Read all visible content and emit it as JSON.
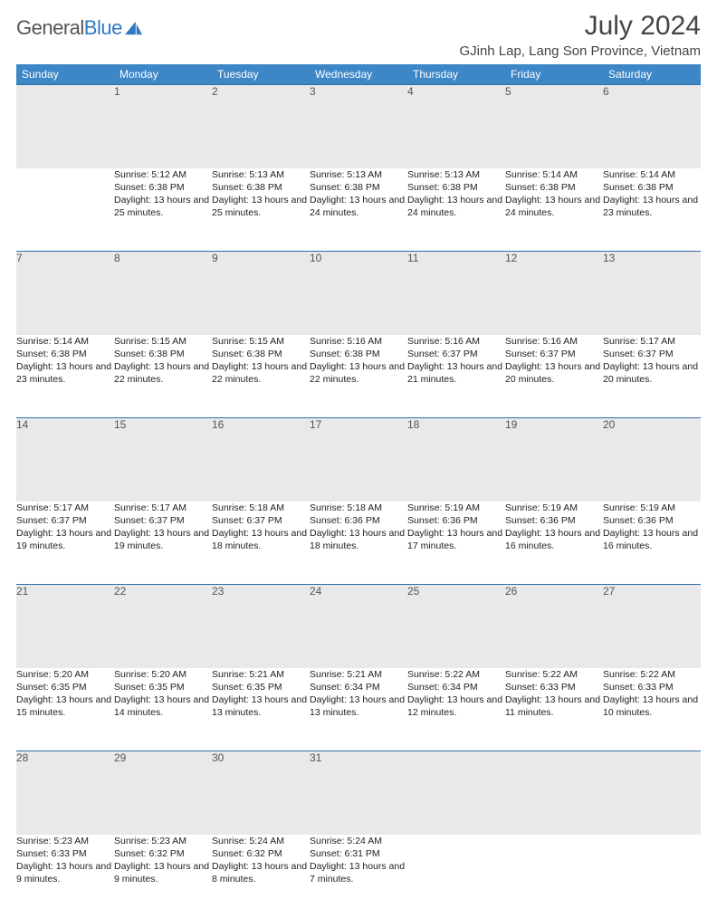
{
  "logo": {
    "word1": "General",
    "word2": "Blue"
  },
  "header": {
    "month_title": "July 2024",
    "location": "GJinh Lap, Lang Son Province, Vietnam"
  },
  "colors": {
    "header_bg": "#3d87c7",
    "header_text": "#ffffff",
    "daynum_bg": "#e9e9e9",
    "daynum_border": "#2f6fa8",
    "body_bg": "#ffffff",
    "text": "#222222",
    "logo_gray": "#555555",
    "logo_blue": "#2f7ac0"
  },
  "weekdays": [
    "Sunday",
    "Monday",
    "Tuesday",
    "Wednesday",
    "Thursday",
    "Friday",
    "Saturday"
  ],
  "weeks": [
    {
      "nums": [
        "",
        "1",
        "2",
        "3",
        "4",
        "5",
        "6"
      ],
      "details": [
        "",
        "Sunrise: 5:12 AM\nSunset: 6:38 PM\nDaylight: 13 hours and 25 minutes.",
        "Sunrise: 5:13 AM\nSunset: 6:38 PM\nDaylight: 13 hours and 25 minutes.",
        "Sunrise: 5:13 AM\nSunset: 6:38 PM\nDaylight: 13 hours and 24 minutes.",
        "Sunrise: 5:13 AM\nSunset: 6:38 PM\nDaylight: 13 hours and 24 minutes.",
        "Sunrise: 5:14 AM\nSunset: 6:38 PM\nDaylight: 13 hours and 24 minutes.",
        "Sunrise: 5:14 AM\nSunset: 6:38 PM\nDaylight: 13 hours and 23 minutes."
      ]
    },
    {
      "nums": [
        "7",
        "8",
        "9",
        "10",
        "11",
        "12",
        "13"
      ],
      "details": [
        "Sunrise: 5:14 AM\nSunset: 6:38 PM\nDaylight: 13 hours and 23 minutes.",
        "Sunrise: 5:15 AM\nSunset: 6:38 PM\nDaylight: 13 hours and 22 minutes.",
        "Sunrise: 5:15 AM\nSunset: 6:38 PM\nDaylight: 13 hours and 22 minutes.",
        "Sunrise: 5:16 AM\nSunset: 6:38 PM\nDaylight: 13 hours and 22 minutes.",
        "Sunrise: 5:16 AM\nSunset: 6:37 PM\nDaylight: 13 hours and 21 minutes.",
        "Sunrise: 5:16 AM\nSunset: 6:37 PM\nDaylight: 13 hours and 20 minutes.",
        "Sunrise: 5:17 AM\nSunset: 6:37 PM\nDaylight: 13 hours and 20 minutes."
      ]
    },
    {
      "nums": [
        "14",
        "15",
        "16",
        "17",
        "18",
        "19",
        "20"
      ],
      "details": [
        "Sunrise: 5:17 AM\nSunset: 6:37 PM\nDaylight: 13 hours and 19 minutes.",
        "Sunrise: 5:17 AM\nSunset: 6:37 PM\nDaylight: 13 hours and 19 minutes.",
        "Sunrise: 5:18 AM\nSunset: 6:37 PM\nDaylight: 13 hours and 18 minutes.",
        "Sunrise: 5:18 AM\nSunset: 6:36 PM\nDaylight: 13 hours and 18 minutes.",
        "Sunrise: 5:19 AM\nSunset: 6:36 PM\nDaylight: 13 hours and 17 minutes.",
        "Sunrise: 5:19 AM\nSunset: 6:36 PM\nDaylight: 13 hours and 16 minutes.",
        "Sunrise: 5:19 AM\nSunset: 6:36 PM\nDaylight: 13 hours and 16 minutes."
      ]
    },
    {
      "nums": [
        "21",
        "22",
        "23",
        "24",
        "25",
        "26",
        "27"
      ],
      "details": [
        "Sunrise: 5:20 AM\nSunset: 6:35 PM\nDaylight: 13 hours and 15 minutes.",
        "Sunrise: 5:20 AM\nSunset: 6:35 PM\nDaylight: 13 hours and 14 minutes.",
        "Sunrise: 5:21 AM\nSunset: 6:35 PM\nDaylight: 13 hours and 13 minutes.",
        "Sunrise: 5:21 AM\nSunset: 6:34 PM\nDaylight: 13 hours and 13 minutes.",
        "Sunrise: 5:22 AM\nSunset: 6:34 PM\nDaylight: 13 hours and 12 minutes.",
        "Sunrise: 5:22 AM\nSunset: 6:33 PM\nDaylight: 13 hours and 11 minutes.",
        "Sunrise: 5:22 AM\nSunset: 6:33 PM\nDaylight: 13 hours and 10 minutes."
      ]
    },
    {
      "nums": [
        "28",
        "29",
        "30",
        "31",
        "",
        "",
        ""
      ],
      "details": [
        "Sunrise: 5:23 AM\nSunset: 6:33 PM\nDaylight: 13 hours and 9 minutes.",
        "Sunrise: 5:23 AM\nSunset: 6:32 PM\nDaylight: 13 hours and 9 minutes.",
        "Sunrise: 5:24 AM\nSunset: 6:32 PM\nDaylight: 13 hours and 8 minutes.",
        "Sunrise: 5:24 AM\nSunset: 6:31 PM\nDaylight: 13 hours and 7 minutes.",
        "",
        "",
        ""
      ]
    }
  ]
}
